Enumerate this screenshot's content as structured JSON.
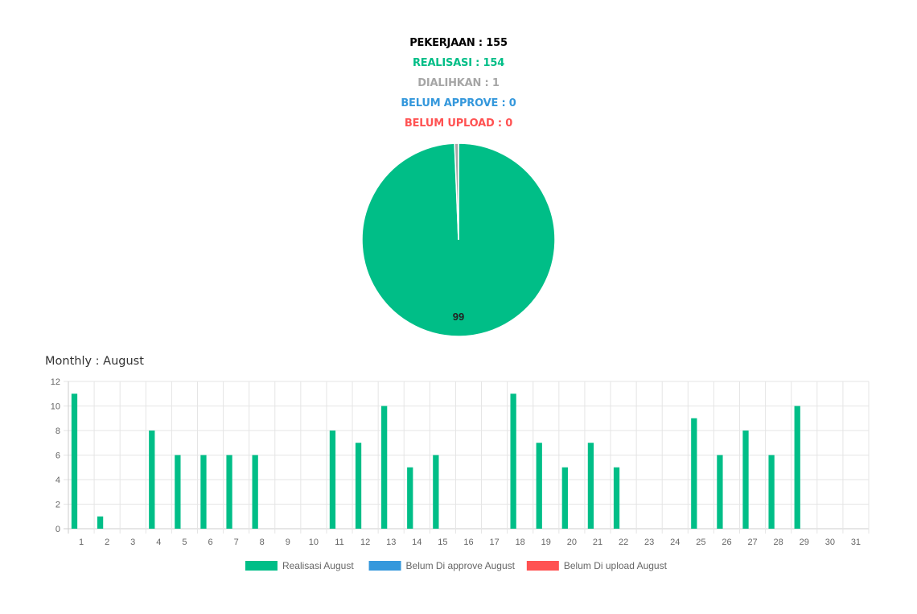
{
  "summary": {
    "pekerjaan": "PEKERJAAN : 155",
    "realisasi": "REALISASI : 154",
    "dialihkan": "DIALIHKAN : 1",
    "belum_approve": "BELUM APPROVE : 0",
    "belum_upload": "BELUM UPLOAD : 0"
  },
  "colors": {
    "pekerjaan": "#000000",
    "realisasi": "#00BE87",
    "dialihkan": "#A6A6A6",
    "belum_approve": "#3598DC",
    "belum_upload": "#FF5252",
    "grid": "#E5E5E5",
    "axis": "#CCCCCC"
  },
  "monthly_title": "Monthly : August",
  "chart_data": [
    {
      "type": "pie",
      "slices": [
        {
          "label": "Realisasi",
          "value": 154,
          "color": "#00BE87"
        },
        {
          "label": "Dialihkan",
          "value": 1,
          "color": "#A6A6A6"
        }
      ],
      "data_label": "99"
    },
    {
      "type": "bar",
      "categories": [
        "1",
        "2",
        "3",
        "4",
        "5",
        "6",
        "7",
        "8",
        "9",
        "10",
        "11",
        "12",
        "13",
        "14",
        "15",
        "16",
        "17",
        "18",
        "19",
        "20",
        "21",
        "22",
        "23",
        "24",
        "25",
        "26",
        "27",
        "28",
        "29",
        "30",
        "31"
      ],
      "series": [
        {
          "name": "Realisasi August",
          "color": "#00BE87",
          "values": [
            11,
            1,
            0,
            8,
            6,
            6,
            6,
            6,
            0,
            0,
            8,
            7,
            10,
            5,
            6,
            0,
            0,
            11,
            7,
            5,
            7,
            5,
            0,
            0,
            9,
            6,
            8,
            6,
            10,
            0,
            0
          ]
        },
        {
          "name": "Belum Di approve August",
          "color": "#3598DC",
          "values": [
            0,
            0,
            0,
            0,
            0,
            0,
            0,
            0,
            0,
            0,
            0,
            0,
            0,
            0,
            0,
            0,
            0,
            0,
            0,
            0,
            0,
            0,
            0,
            0,
            0,
            0,
            0,
            0,
            0,
            0,
            0
          ]
        },
        {
          "name": "Belum Di upload August",
          "color": "#FF5252",
          "values": [
            0,
            0,
            0,
            0,
            0,
            0,
            0,
            0,
            0,
            0,
            0,
            0,
            0,
            0,
            0,
            0,
            0,
            0,
            0,
            0,
            0,
            0,
            0,
            0,
            0,
            0,
            0,
            0,
            0,
            0,
            0
          ]
        }
      ],
      "yticks": [
        "0",
        "2",
        "4",
        "6",
        "8",
        "10",
        "12"
      ],
      "ylim": [
        0,
        12
      ],
      "grid": true,
      "legend": "bottom"
    }
  ]
}
